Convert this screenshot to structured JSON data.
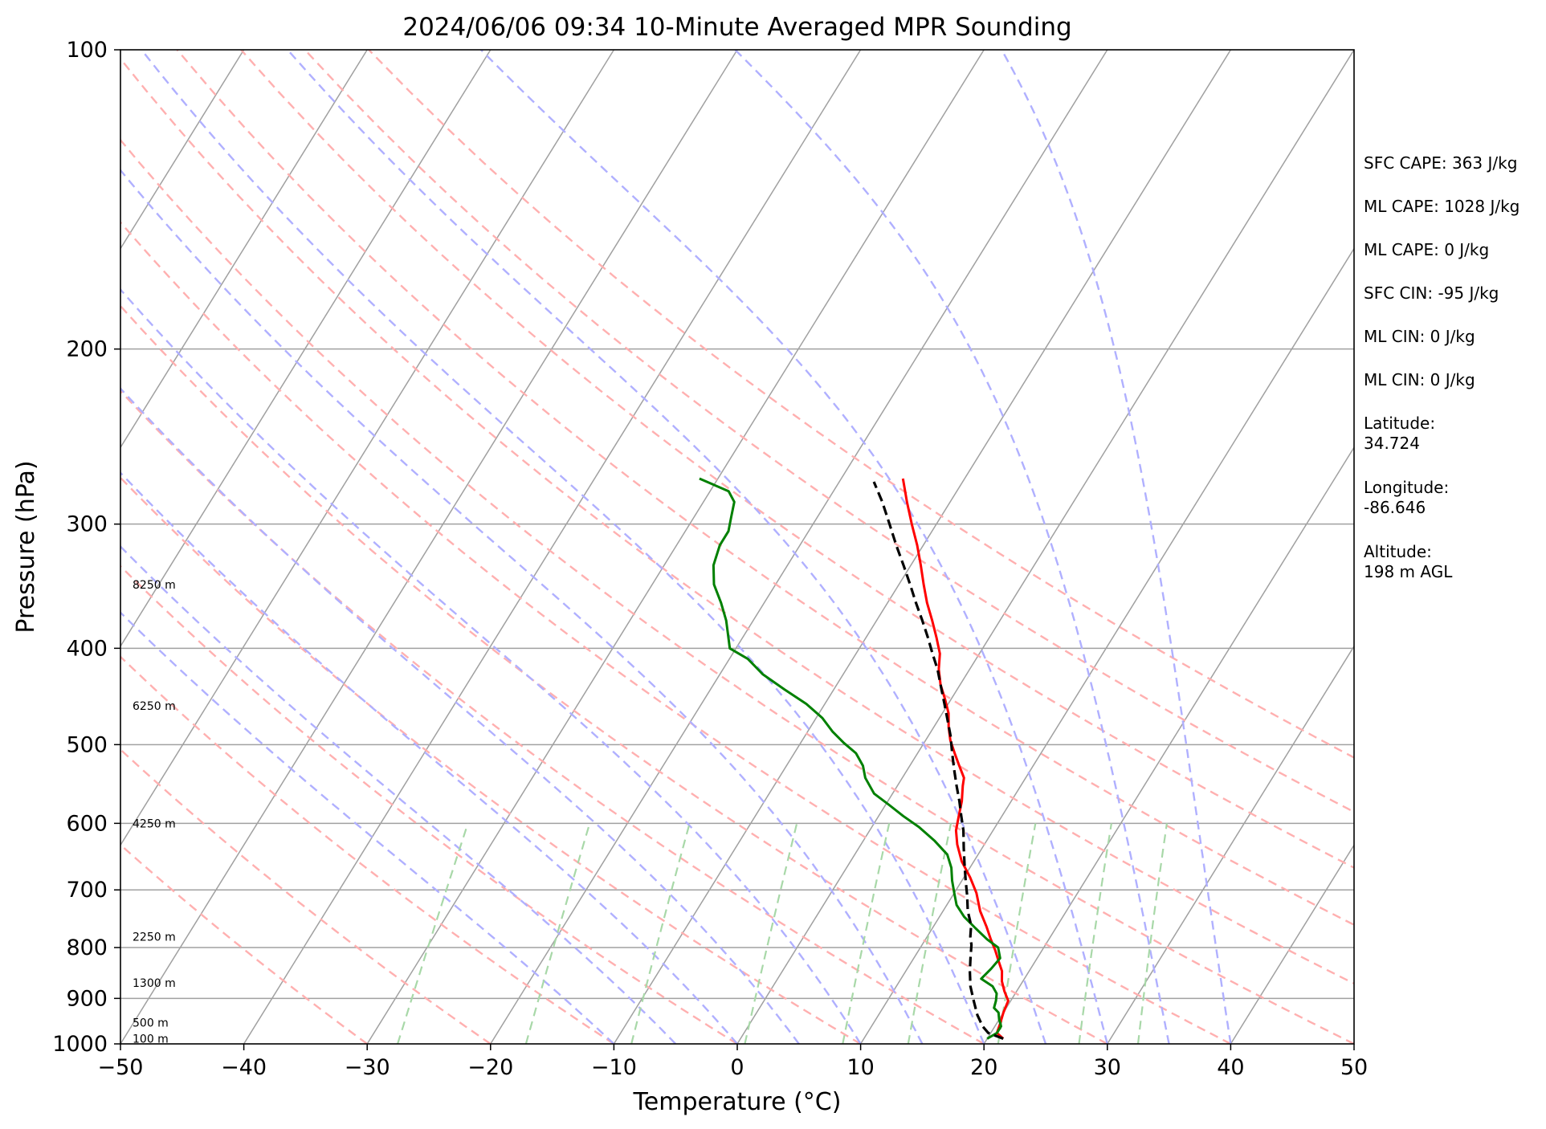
{
  "chart_data": {
    "type": "line",
    "subtype": "skew-T log-P diagram",
    "title": "2024/06/06 09:34 10-Minute Averaged MPR Sounding",
    "xlabel": "Temperature (°C)",
    "ylabel": "Pressure (hPa)",
    "xlim": [
      -50,
      50
    ],
    "ylim": [
      1000,
      100
    ],
    "y_scale": "log",
    "x_ticks": [
      "−50",
      "−40",
      "−30",
      "−20",
      "−10",
      "0",
      "10",
      "20",
      "30",
      "40",
      "50"
    ],
    "y_ticks": [
      "100",
      "200",
      "300",
      "400",
      "500",
      "600",
      "700",
      "800",
      "900",
      "1000"
    ],
    "height_labels": [
      {
        "label": "8250 m",
        "p": 345
      },
      {
        "label": "6250 m",
        "p": 457
      },
      {
        "label": "4250 m",
        "p": 600
      },
      {
        "label": "2250 m",
        "p": 780
      },
      {
        "label": "1300 m",
        "p": 868
      },
      {
        "label": "500 m",
        "p": 952
      },
      {
        "label": "100 m",
        "p": 988
      }
    ],
    "info": [
      "SFC CAPE: 363 J/kg",
      "ML CAPE: 1028 J/kg",
      "ML CAPE: 0 J/kg",
      "SFC CIN: -95 J/kg",
      "ML CIN: 0 J/kg",
      "ML CIN: 0 J/kg",
      "Latitude:",
      "34.724",
      "Longitude:",
      "-86.646",
      "Altitude:",
      "198 m AGL"
    ],
    "series": [
      {
        "role": "temperature",
        "color": "#ff0000",
        "style": "solid",
        "points": [
          [
            21.3,
            988
          ],
          [
            20.5,
            975
          ],
          [
            20.3,
            955
          ],
          [
            20.0,
            930
          ],
          [
            19.8,
            905
          ],
          [
            19.0,
            885
          ],
          [
            18.3,
            865
          ],
          [
            17.8,
            845
          ],
          [
            17.0,
            825
          ],
          [
            16.2,
            805
          ],
          [
            15.3,
            785
          ],
          [
            14.3,
            762
          ],
          [
            13.0,
            735
          ],
          [
            11.8,
            705
          ],
          [
            10.5,
            680
          ],
          [
            9.0,
            655
          ],
          [
            7.8,
            630
          ],
          [
            7.0,
            610
          ],
          [
            6.5,
            590
          ],
          [
            6.0,
            570
          ],
          [
            5.3,
            550
          ],
          [
            5.0,
            540
          ],
          [
            4.0,
            525
          ],
          [
            3.0,
            510
          ],
          [
            2.0,
            495
          ],
          [
            1.2,
            480
          ],
          [
            0.5,
            465
          ],
          [
            -0.5,
            450
          ],
          [
            -1.6,
            435
          ],
          [
            -2.5,
            420
          ],
          [
            -3.2,
            405
          ],
          [
            -4.3,
            390
          ],
          [
            -5.5,
            375
          ],
          [
            -6.8,
            360
          ],
          [
            -8.0,
            345
          ],
          [
            -9.2,
            330
          ],
          [
            -10.5,
            315
          ],
          [
            -12.0,
            300
          ],
          [
            -13.5,
            285
          ],
          [
            -15.0,
            270
          ]
        ]
      },
      {
        "role": "dewpoint",
        "color": "#008000",
        "style": "solid",
        "points": [
          [
            20.0,
            988
          ],
          [
            20.5,
            975
          ],
          [
            20.5,
            960
          ],
          [
            20.0,
            945
          ],
          [
            19.6,
            930
          ],
          [
            19.0,
            920
          ],
          [
            18.8,
            905
          ],
          [
            18.5,
            890
          ],
          [
            17.8,
            875
          ],
          [
            16.5,
            860
          ],
          [
            16.8,
            840
          ],
          [
            17.0,
            820
          ],
          [
            16.3,
            800
          ],
          [
            15.0,
            785
          ],
          [
            13.5,
            765
          ],
          [
            12.0,
            745
          ],
          [
            10.8,
            725
          ],
          [
            10.0,
            705
          ],
          [
            9.2,
            685
          ],
          [
            8.5,
            665
          ],
          [
            7.5,
            645
          ],
          [
            5.8,
            625
          ],
          [
            3.8,
            605
          ],
          [
            2.0,
            590
          ],
          [
            0.3,
            575
          ],
          [
            -1.5,
            560
          ],
          [
            -3.0,
            540
          ],
          [
            -3.8,
            525
          ],
          [
            -5.0,
            510
          ],
          [
            -6.5,
            498
          ],
          [
            -8.0,
            485
          ],
          [
            -9.5,
            470
          ],
          [
            -11.5,
            455
          ],
          [
            -14.0,
            440
          ],
          [
            -16.5,
            425
          ],
          [
            -18.5,
            410
          ],
          [
            -20.5,
            400
          ],
          [
            -21.3,
            388
          ],
          [
            -22.2,
            375
          ],
          [
            -23.5,
            360
          ],
          [
            -25.0,
            345
          ],
          [
            -26.0,
            330
          ],
          [
            -26.5,
            315
          ],
          [
            -26.5,
            305
          ],
          [
            -27.0,
            295
          ],
          [
            -27.5,
            285
          ],
          [
            -28.5,
            278
          ],
          [
            -31.5,
            270
          ]
        ]
      },
      {
        "role": "parcel",
        "color": "#000000",
        "style": "dashed",
        "points": [
          [
            21.3,
            988
          ],
          [
            19.8,
            975
          ],
          [
            19.0,
            960
          ],
          [
            18.0,
            935
          ],
          [
            17.0,
            905
          ],
          [
            16.0,
            875
          ],
          [
            15.2,
            845
          ],
          [
            14.6,
            820
          ],
          [
            14.0,
            795
          ],
          [
            13.5,
            780
          ],
          [
            13.0,
            760
          ],
          [
            12.0,
            735
          ],
          [
            11.2,
            710
          ],
          [
            10.3,
            685
          ],
          [
            9.4,
            660
          ],
          [
            8.5,
            635
          ],
          [
            7.6,
            610
          ],
          [
            6.7,
            590
          ],
          [
            5.8,
            570
          ],
          [
            4.8,
            550
          ],
          [
            3.8,
            530
          ],
          [
            2.8,
            510
          ],
          [
            1.8,
            490
          ],
          [
            0.8,
            473
          ],
          [
            -0.3,
            455
          ],
          [
            -1.4,
            438
          ],
          [
            -2.6,
            420
          ],
          [
            -3.8,
            405
          ],
          [
            -5.0,
            390
          ],
          [
            -6.3,
            375
          ],
          [
            -7.7,
            360
          ],
          [
            -9.1,
            345
          ],
          [
            -10.6,
            330
          ],
          [
            -12.2,
            315
          ],
          [
            -13.8,
            300
          ],
          [
            -15.5,
            285
          ],
          [
            -17.2,
            272
          ]
        ]
      }
    ],
    "reference_lines": {
      "isobars_hPa": [
        200,
        300,
        400,
        500,
        600,
        700,
        800,
        900
      ],
      "isotherms_C": [
        -100,
        -90,
        -80,
        -70,
        -60,
        -50,
        -40,
        -30,
        -20,
        -10,
        0,
        10,
        20,
        30,
        40,
        50
      ],
      "dry_adiabats_C": [
        -30,
        -20,
        -10,
        0,
        10,
        20,
        30,
        40,
        50,
        60,
        70,
        80,
        90,
        100
      ],
      "moist_adiabats_C": [
        -10,
        -5,
        0,
        5,
        10,
        15,
        20,
        25,
        30,
        35,
        40
      ],
      "mixing_ratios_gkg": [
        0.4,
        1,
        2,
        4,
        7,
        10,
        16,
        24,
        32
      ],
      "colors": {
        "isotherm": "#a0a0a0",
        "dry_adiabat": "#ffb0b0",
        "moist_adiabat": "#b0b0ff",
        "mixing_ratio": "#a8d8a8"
      }
    }
  }
}
